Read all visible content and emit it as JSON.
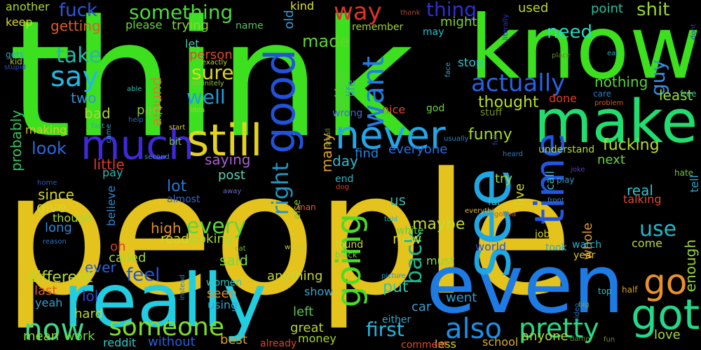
{
  "words": [
    {
      "text": "people",
      "color": "#e3c31c"
    },
    {
      "text": "think",
      "color": "#3ce01e"
    },
    {
      "text": "even",
      "color": "#1f7be4"
    },
    {
      "text": "know",
      "color": "#3ce01e"
    },
    {
      "text": "make",
      "color": "#23dc6e"
    },
    {
      "text": "really",
      "color": "#23cde0"
    },
    {
      "text": "see",
      "color": "#1fa7e3"
    },
    {
      "text": "still",
      "color": "#e3d21e"
    },
    {
      "text": "much",
      "color": "#3e29d8"
    },
    {
      "text": "never",
      "color": "#25a5e6"
    },
    {
      "text": "got",
      "color": "#22d88a"
    },
    {
      "text": "go",
      "color": "#e8922a"
    },
    {
      "text": "time",
      "color": "#2356e0"
    },
    {
      "text": "good",
      "color": "#2252dc"
    },
    {
      "text": "someone",
      "color": "#7fdc29"
    },
    {
      "text": "pretty",
      "color": "#26dc83"
    },
    {
      "text": "also",
      "color": "#1f8fe3"
    },
    {
      "text": "going",
      "color": "#4bdc24"
    },
    {
      "text": "now",
      "color": "#3fd989"
    },
    {
      "text": "say",
      "color": "#23b8e4"
    },
    {
      "text": "want",
      "color": "#1f7de4"
    },
    {
      "text": "actually",
      "color": "#2763e3"
    },
    {
      "text": "way",
      "color": "#e0322c"
    },
    {
      "text": "something",
      "color": "#4ed93a"
    },
    {
      "text": "fuck",
      "color": "#2d55e0"
    },
    {
      "text": "thing",
      "color": "#2f2ed4"
    },
    {
      "text": "need",
      "color": "#2ad7c0"
    },
    {
      "text": "shit",
      "color": "#9ad82a"
    },
    {
      "text": "take",
      "color": "#26b7a6"
    },
    {
      "text": "made",
      "color": "#5ed529"
    },
    {
      "text": "getting",
      "color": "#e05a2b"
    },
    {
      "text": "right",
      "color": "#2196c2"
    },
    {
      "text": "back",
      "color": "#21b58a"
    },
    {
      "text": "first",
      "color": "#1fb9e3"
    },
    {
      "text": "every",
      "color": "#5ad83a"
    },
    {
      "text": "fucking",
      "color": "#b4dc2e"
    },
    {
      "text": "look",
      "color": "#2a69e0"
    },
    {
      "text": "well",
      "color": "#1f9fe4"
    },
    {
      "text": "sure",
      "color": "#dfd51f"
    },
    {
      "text": "guy",
      "color": "#3a8de2"
    },
    {
      "text": "use",
      "color": "#23b7c7"
    },
    {
      "text": "feel",
      "color": "#2256d9"
    },
    {
      "text": "thought",
      "color": "#b7df1e"
    },
    {
      "text": "little",
      "color": "#dc3a2d"
    },
    {
      "text": "probably",
      "color": "#33c45e"
    },
    {
      "text": "everyone",
      "color": "#2d6fde"
    },
    {
      "text": "many",
      "color": "#e1a623"
    },
    {
      "text": "find",
      "color": "#2582d8"
    },
    {
      "text": "another",
      "color": "#b0d928"
    },
    {
      "text": "keep",
      "color": "#d8d82a"
    },
    {
      "text": "kind",
      "color": "#dfe22a"
    },
    {
      "text": "old",
      "color": "#3c9fd8"
    },
    {
      "text": "please",
      "color": "#6ad838"
    },
    {
      "text": "trying",
      "color": "#8bd63a"
    },
    {
      "text": "name",
      "color": "#57c06a"
    },
    {
      "text": "remember",
      "color": "#a3d038"
    },
    {
      "text": "might",
      "color": "#7ed32c"
    },
    {
      "text": "may",
      "color": "#2dbfc8"
    },
    {
      "text": "used",
      "color": "#b9d829"
    },
    {
      "text": "point",
      "color": "#23c3a2"
    },
    {
      "text": "let",
      "color": "#4cc4a7"
    },
    {
      "text": "person",
      "color": "#e0472b"
    },
    {
      "text": "around",
      "color": "#d87e22"
    },
    {
      "text": "two",
      "color": "#3492d4"
    },
    {
      "text": "bad",
      "color": "#b3d130"
    },
    {
      "text": "part",
      "color": "#7fc73b"
    },
    {
      "text": "making",
      "color": "#d3cb2a"
    },
    {
      "text": "stop",
      "color": "#2ac6d5"
    },
    {
      "text": "nothing",
      "color": "#5bd232"
    },
    {
      "text": "least",
      "color": "#9fdc2b"
    },
    {
      "text": "better",
      "color": "#58ce3c"
    },
    {
      "text": "life",
      "color": "#3c90d2"
    },
    {
      "text": "wrong",
      "color": "#3a6fd8"
    },
    {
      "text": "nice",
      "color": "#e0492d"
    },
    {
      "text": "god",
      "color": "#66d63d"
    },
    {
      "text": "stuff",
      "color": "#6f8d2a"
    },
    {
      "text": "funny",
      "color": "#a7da2b"
    },
    {
      "text": "done",
      "color": "#e03c2a"
    },
    {
      "text": "day",
      "color": "#2fb9d6"
    },
    {
      "text": "lot",
      "color": "#2a79d8"
    },
    {
      "text": "saying",
      "color": "#a75fd0"
    },
    {
      "text": "post",
      "color": "#5bd3b2"
    },
    {
      "text": "since",
      "color": "#d4d32a"
    },
    {
      "text": "give",
      "color": "#d4d52b"
    },
    {
      "text": "long",
      "color": "#2c8ad6"
    },
    {
      "text": "though",
      "color": "#a9d734"
    },
    {
      "text": "high",
      "color": "#e58f27"
    },
    {
      "text": "read",
      "color": "#d3d72d"
    },
    {
      "text": "looking",
      "color": "#a8da36"
    },
    {
      "text": "oh",
      "color": "#dd3a2d"
    },
    {
      "text": "called",
      "color": "#a1d734"
    },
    {
      "text": "ever",
      "color": "#2e63d8"
    },
    {
      "text": "said",
      "color": "#78da3a"
    },
    {
      "text": "different",
      "color": "#b5dc2a"
    },
    {
      "text": "last",
      "color": "#e05c2a"
    },
    {
      "text": "lol",
      "color": "#2e46d6"
    },
    {
      "text": "yeah",
      "color": "#35a1cc"
    },
    {
      "text": "hard",
      "color": "#b9d52c"
    },
    {
      "text": "mean",
      "color": "#8fd633"
    },
    {
      "text": "work",
      "color": "#68d63a"
    },
    {
      "text": "reddit",
      "color": "#24d0c8"
    },
    {
      "text": "without",
      "color": "#2460d6"
    },
    {
      "text": "best",
      "color": "#e0a02a"
    },
    {
      "text": "seen",
      "color": "#e0922a"
    },
    {
      "text": "using",
      "color": "#2fa6d0"
    },
    {
      "text": "women",
      "color": "#32c7c2"
    },
    {
      "text": "anything",
      "color": "#c3d633"
    },
    {
      "text": "show",
      "color": "#35a5d0"
    },
    {
      "text": "left",
      "color": "#58c64c"
    },
    {
      "text": "great",
      "color": "#b8d52c"
    },
    {
      "text": "money",
      "color": "#a3d530"
    },
    {
      "text": "put",
      "color": "#35c3a7"
    },
    {
      "text": "maybe",
      "color": "#c8da2b"
    },
    {
      "text": "us",
      "color": "#41b7a3"
    },
    {
      "text": "new",
      "color": "#d6d22a"
    },
    {
      "text": "white",
      "color": "#5ad645"
    },
    {
      "text": "must",
      "color": "#8ed63a"
    },
    {
      "text": "went",
      "color": "#2a9fd6"
    },
    {
      "text": "car",
      "color": "#3e9fd0"
    },
    {
      "text": "anyone",
      "color": "#b4d630"
    },
    {
      "text": "less",
      "color": "#d8d42e"
    },
    {
      "text": "school",
      "color": "#d8b22e"
    },
    {
      "text": "comment",
      "color": "#e04a2a"
    },
    {
      "text": "already",
      "color": "#e0432a"
    },
    {
      "text": "either",
      "color": "#2fa5cf"
    },
    {
      "text": "believe",
      "color": "#2d86d2"
    },
    {
      "text": "try",
      "color": "#a8d834"
    },
    {
      "text": "live",
      "color": "#d2d52b"
    },
    {
      "text": "call",
      "color": "#3abfc7"
    },
    {
      "text": "next",
      "color": "#6fd13e"
    },
    {
      "text": "tell",
      "color": "#2fa3c8"
    },
    {
      "text": "real",
      "color": "#30c2cf"
    },
    {
      "text": "talking",
      "color": "#e04a2d"
    },
    {
      "text": "come",
      "color": "#b9d92a"
    },
    {
      "text": "enough",
      "color": "#9ad62f"
    },
    {
      "text": "whole",
      "color": "#e09b2a"
    },
    {
      "text": "love",
      "color": "#a8d632"
    },
    {
      "text": "world",
      "color": "#2e51d8"
    },
    {
      "text": "job",
      "color": "#d6d52a"
    },
    {
      "text": "took",
      "color": "#2ea7d2"
    },
    {
      "text": "watch",
      "color": "#2fb1c8"
    },
    {
      "text": "year",
      "color": "#d6c72c"
    },
    {
      "text": "found",
      "color": "#d0d72b"
    },
    {
      "text": "black",
      "color": "#6fd23a"
    },
    {
      "text": "end",
      "color": "#2eb5c2"
    },
    {
      "text": "pay",
      "color": "#2db7b0"
    },
    {
      "text": "almost",
      "color": "#3266d3"
    },
    {
      "text": "far",
      "color": "#2fc0c7"
    },
    {
      "text": "understand",
      "color": "#b5da2e"
    },
    {
      "text": "hate",
      "color": "#6cc33d"
    },
    {
      "text": "free",
      "color": "#3fbd8e"
    },
    {
      "text": "care",
      "color": "#2b7dc4"
    },
    {
      "text": "problem",
      "color": "#d05a2b"
    },
    {
      "text": "eat",
      "color": "#2ca7b8"
    },
    {
      "text": "place",
      "color": "#6a8a2e"
    },
    {
      "text": "face",
      "color": "#3fa0c2"
    },
    {
      "text": "literally",
      "color": "#3138c9"
    },
    {
      "text": "thank",
      "color": "#b3452a"
    },
    {
      "text": "dont",
      "color": "#2f3bc0"
    },
    {
      "text": "gets",
      "color": "#30a8c8"
    },
    {
      "text": "kid",
      "color": "#b2c530"
    },
    {
      "text": "stupid",
      "color": "#2e4fbd"
    },
    {
      "text": "able",
      "color": "#3ab9b0"
    },
    {
      "text": "exactly",
      "color": "#c5d22c"
    },
    {
      "text": "definitely",
      "color": "#96c23a"
    },
    {
      "text": "idea",
      "color": "#b1c733"
    },
    {
      "text": "help",
      "color": "#2e68c4"
    },
    {
      "text": "fact",
      "color": "#3aa99f"
    },
    {
      "text": "start",
      "color": "#d8cf2c"
    },
    {
      "text": "bit",
      "color": "#6cc23f"
    },
    {
      "text": "came",
      "color": "#3c9ec1"
    },
    {
      "text": "second",
      "color": "#3b8ec5"
    },
    {
      "text": "home",
      "color": "#2e5fb8"
    },
    {
      "text": "away",
      "color": "#6c64c2"
    },
    {
      "text": "dog",
      "color": "#dd3b2a"
    },
    {
      "text": "cat",
      "color": "#6ec04a"
    },
    {
      "text": "word",
      "color": "#c5cf2f"
    },
    {
      "text": "else",
      "color": "#8fbe37"
    },
    {
      "text": "man",
      "color": "#e05e2c"
    },
    {
      "text": "reason",
      "color": "#2a74bf"
    },
    {
      "text": "told",
      "color": "#36b2bb"
    },
    {
      "text": "picture",
      "color": "#2a95c4"
    },
    {
      "text": "small",
      "color": "#6f9e3a"
    },
    {
      "text": "usually",
      "color": "#2b86c4"
    },
    {
      "text": "full",
      "color": "#2c44c0"
    },
    {
      "text": "heard",
      "color": "#2f7dbf"
    },
    {
      "text": "joke",
      "color": "#5e38c4"
    },
    {
      "text": "play",
      "color": "#2f98c7"
    },
    {
      "text": "front",
      "color": "#3c7fc6"
    },
    {
      "text": "everything",
      "color": "#e0b62a"
    },
    {
      "text": "gonna",
      "color": "#b5553a"
    },
    {
      "text": "top",
      "color": "#2fbfc9"
    },
    {
      "text": "half",
      "color": "#d8a02c"
    },
    {
      "text": "video",
      "color": "#2b72bd"
    },
    {
      "text": "damn",
      "color": "#6c8432"
    },
    {
      "text": "fun",
      "color": "#7d8b30"
    },
    {
      "text": "big",
      "color": "#5fb03d"
    },
    {
      "text": "instead",
      "color": "#3081bd"
    }
  ]
}
